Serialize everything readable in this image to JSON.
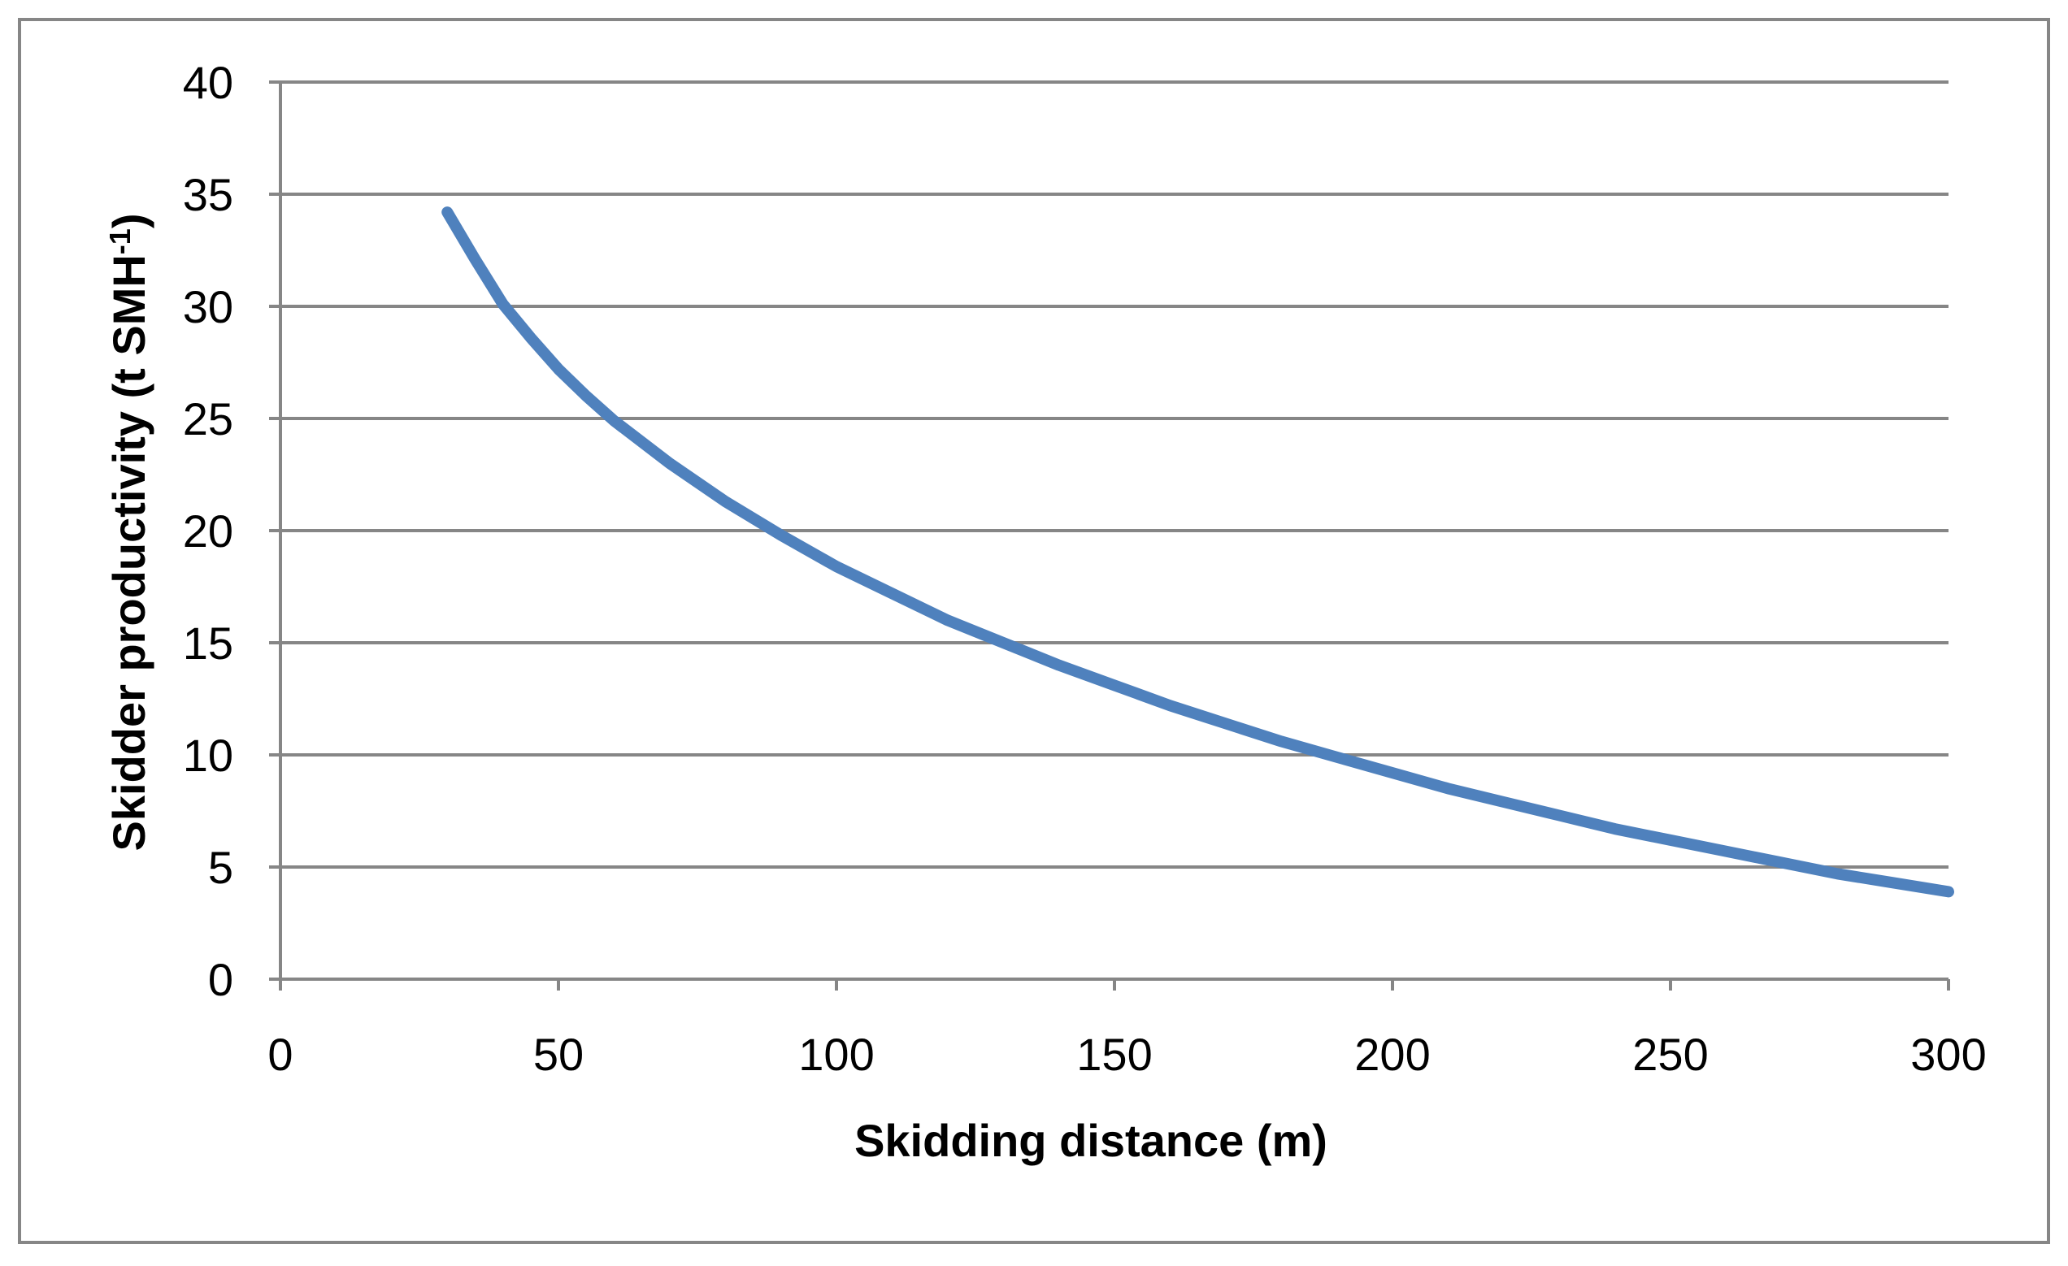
{
  "chart_data": {
    "type": "line",
    "title": "",
    "xlabel": "Skidding distance (m)",
    "ylabel": {
      "main": "Skidder productivity (t SMH",
      "superscript": "-1",
      "close": ")"
    },
    "xlim": [
      0,
      300
    ],
    "ylim": [
      0,
      40
    ],
    "x_ticks": [
      "0",
      "50",
      "100",
      "150",
      "200",
      "250",
      "300"
    ],
    "y_ticks": [
      "0",
      "5",
      "10",
      "15",
      "20",
      "25",
      "30",
      "35",
      "40"
    ],
    "grid": "horizontal",
    "legend": "none",
    "colors": {
      "series": "#4f81bd",
      "grid": "#868686",
      "frame": "#868686"
    },
    "series": [
      {
        "x": [
          30,
          35,
          40,
          45,
          50,
          55,
          60,
          70,
          80,
          90,
          100,
          110,
          120,
          130,
          140,
          150,
          160,
          170,
          180,
          190,
          200,
          210,
          220,
          230,
          240,
          250,
          260,
          270,
          280,
          290,
          300
        ],
        "y": [
          34.2,
          32.1,
          30.1,
          28.6,
          27.2,
          26.0,
          24.9,
          23.0,
          21.3,
          19.8,
          18.4,
          17.2,
          16.0,
          15.0,
          14.0,
          13.1,
          12.2,
          11.4,
          10.6,
          9.9,
          9.2,
          8.5,
          7.9,
          7.3,
          6.7,
          6.2,
          5.7,
          5.2,
          4.7,
          4.3,
          3.9
        ]
      }
    ]
  }
}
